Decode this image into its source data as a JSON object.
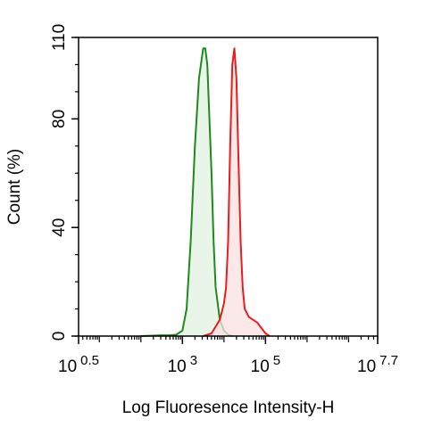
{
  "chart_data": {
    "type": "area",
    "title": "",
    "xlabel": "Log Fluoresence Intensity-H",
    "ylabel": "Count  (%)",
    "xscale": "log",
    "xlim": [
      0.5,
      7.7
    ],
    "ylim": [
      0,
      110
    ],
    "grid": false,
    "legend": "none",
    "x_ticks": [
      {
        "base": "10",
        "exp": "0.5",
        "value": 0.5
      },
      {
        "base": "10",
        "exp": "3",
        "value": 3
      },
      {
        "base": "10",
        "exp": "5",
        "value": 5
      },
      {
        "base": "10",
        "exp": "7.7",
        "value": 7.7
      }
    ],
    "y_ticks": [
      "0",
      "40",
      "80",
      "110"
    ],
    "y_tick_values": [
      0,
      40,
      80,
      110
    ],
    "series": [
      {
        "color": "#1e8a1e",
        "fill": "#e3f1e1",
        "x": [
          2.0,
          2.5,
          2.7,
          2.85,
          3.0,
          3.1,
          3.2,
          3.3,
          3.4,
          3.5,
          3.55,
          3.6,
          3.7,
          3.75,
          3.8,
          3.9,
          4.0,
          4.1,
          4.2
        ],
        "y": [
          0,
          0.3,
          0.3,
          0.5,
          2,
          10,
          35,
          70,
          95,
          106,
          106,
          100,
          60,
          35,
          18,
          6,
          2,
          0.5,
          0
        ]
      },
      {
        "color": "#e81e1e",
        "fill": "#f9e0e0",
        "x": [
          3.5,
          3.7,
          3.9,
          4.0,
          4.05,
          4.1,
          4.15,
          4.2,
          4.25,
          4.3,
          4.35,
          4.4,
          4.45,
          4.5,
          4.6,
          4.7,
          4.8,
          4.9,
          5.0,
          5.1
        ],
        "y": [
          0,
          1,
          6,
          12,
          18,
          35,
          70,
          100,
          106,
          95,
          65,
          35,
          18,
          10,
          7,
          6,
          5,
          3,
          1,
          0
        ]
      }
    ]
  }
}
